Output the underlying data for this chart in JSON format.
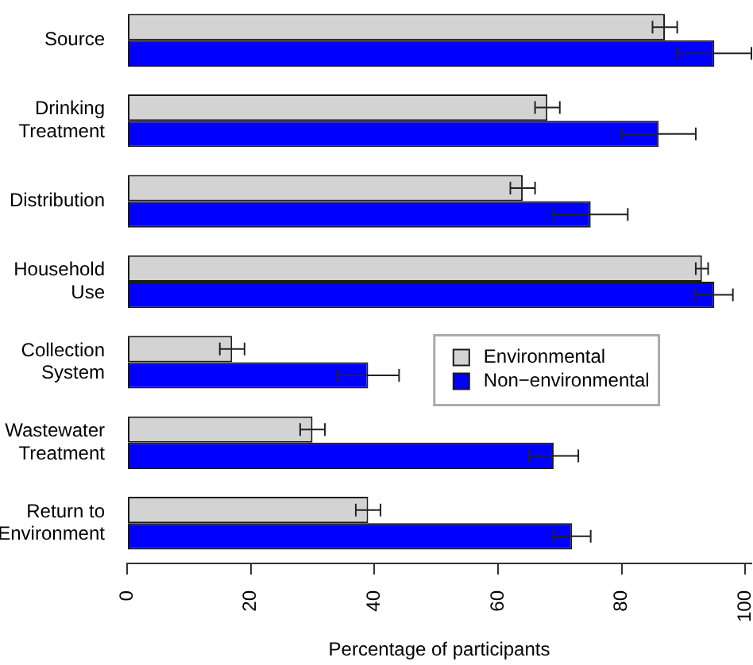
{
  "chart_data": {
    "type": "bar",
    "orientation": "horizontal",
    "xlabel": "Percentage of participants",
    "categories": [
      "Source",
      "Drinking\nTreatment",
      "Distribution",
      "Household\nUse",
      "Collection\nSystem",
      "Wastewater\nTreatment",
      "Return to\nEnvironment"
    ],
    "series": [
      {
        "name": "Environmental",
        "color": "#d3d3d3",
        "values": [
          87,
          68,
          64,
          93,
          17,
          30,
          39
        ],
        "errors": [
          2,
          2,
          2,
          1,
          2,
          2,
          2
        ]
      },
      {
        "name": "Non−environmental",
        "color": "#0000ff",
        "values": [
          95,
          86,
          75,
          95,
          39,
          69,
          72
        ],
        "errors": [
          6,
          6,
          6,
          3,
          5,
          4,
          3
        ]
      }
    ],
    "xlim": [
      0,
      101
    ],
    "xticks": [
      0,
      20,
      40,
      60,
      80,
      100
    ],
    "grid": false,
    "legend": "right"
  }
}
